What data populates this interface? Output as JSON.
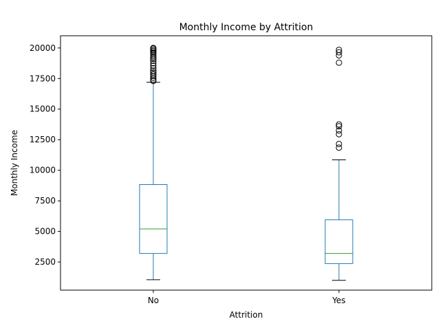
{
  "chart_data": {
    "type": "box",
    "title": "Monthly Income by Attrition",
    "xlabel": "Attrition",
    "ylabel": "Monthly Income",
    "categories": [
      "No",
      "Yes"
    ],
    "ylim": [
      200,
      21000
    ],
    "yticks": [
      2500,
      5000,
      7500,
      10000,
      12500,
      15000,
      17500,
      20000
    ],
    "grid": false,
    "boxes": [
      {
        "category": "No",
        "whisker_low": 1050,
        "q1": 3200,
        "median": 5200,
        "q3": 8830,
        "whisker_high": 17200,
        "outliers": [
          17300,
          17400,
          17550,
          17700,
          17850,
          18000,
          18150,
          18350,
          18550,
          18750,
          18950,
          19100,
          19250,
          19400,
          19550,
          19650,
          19750,
          19850,
          19950,
          20000
        ]
      },
      {
        "category": "Yes",
        "whisker_low": 1000,
        "q1": 2370,
        "median": 3200,
        "q3": 5950,
        "whisker_high": 10850,
        "outliers": [
          11850,
          12150,
          12950,
          13250,
          13600,
          13750,
          18800,
          19400,
          19650,
          19850
        ]
      }
    ],
    "colors": {
      "box": "#1f77b4",
      "median": "#2ca02c",
      "whisker_cap": "#000000",
      "outlier": "#000000"
    }
  }
}
